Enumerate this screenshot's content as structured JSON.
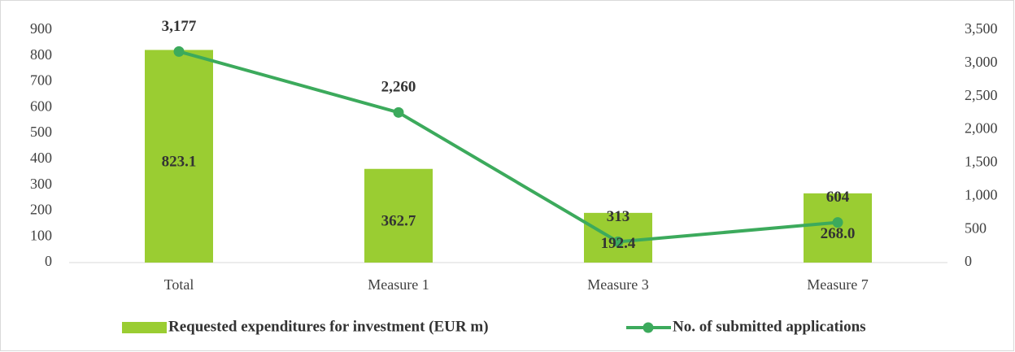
{
  "chart_data": {
    "type": "bar",
    "categories": [
      "Total",
      "Measure 1",
      "Measure 3",
      "Measure 7"
    ],
    "series": [
      {
        "name": "Requested expenditures for investment (EUR m)",
        "type": "bar",
        "color": "#9acd32",
        "values": [
          823.1,
          362.7,
          192.4,
          268.0
        ],
        "value_labels": [
          "823.1",
          "362.7",
          "192.4",
          "268.0"
        ]
      },
      {
        "name": "No. of submitted applications",
        "type": "line",
        "axis": "y2",
        "color": "#3caa5c",
        "values": [
          3177,
          2260,
          313,
          604
        ],
        "value_labels": [
          "3,177",
          "2,260",
          "313",
          "604"
        ]
      }
    ],
    "ylim": [
      0,
      900
    ],
    "yticks": [
      0,
      100,
      200,
      300,
      400,
      500,
      600,
      700,
      800,
      900
    ],
    "y2lim": [
      0,
      3500
    ],
    "y2ticks": [
      0,
      500,
      {
        "value": 1000,
        "label": "1,000"
      },
      {
        "value": 1500,
        "label": "1,500"
      },
      {
        "value": 2000,
        "label": "2,000"
      },
      {
        "value": 2500,
        "label": "2,500"
      },
      {
        "value": 3000,
        "label": "3,000"
      },
      {
        "value": 3500,
        "label": "3,500"
      }
    ],
    "grid": false,
    "legend": "bottom"
  }
}
